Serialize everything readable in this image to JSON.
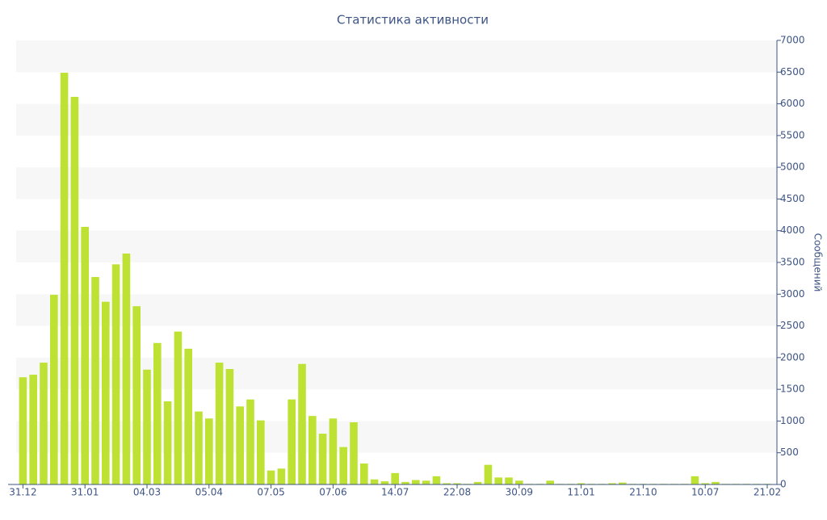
{
  "chart_data": {
    "type": "bar",
    "title": "Статистика активности",
    "y_label": "Сообщений",
    "categories": [
      "31.12",
      null,
      null,
      null,
      null,
      null,
      "31.01",
      null,
      null,
      null,
      null,
      null,
      "04.03",
      null,
      null,
      null,
      null,
      null,
      "05.04",
      null,
      null,
      null,
      null,
      null,
      "07.05",
      null,
      null,
      null,
      null,
      null,
      "07.06",
      null,
      null,
      null,
      null,
      null,
      "14.07",
      null,
      null,
      null,
      null,
      null,
      "22.08",
      null,
      null,
      null,
      null,
      null,
      "30.09",
      null,
      null,
      null,
      null,
      null,
      "11.01",
      null,
      null,
      null,
      null,
      null,
      "21.10",
      null,
      null,
      null,
      null,
      null,
      "10.07",
      null,
      null,
      null,
      null,
      null,
      "21.02"
    ],
    "values": [
      1690,
      1730,
      1920,
      2990,
      6490,
      6110,
      4060,
      3270,
      2880,
      3470,
      3640,
      2810,
      1810,
      2230,
      1310,
      2410,
      2140,
      1150,
      1040,
      1920,
      1820,
      1230,
      1340,
      1010,
      220,
      250,
      1340,
      1900,
      1080,
      800,
      1040,
      590,
      980,
      330,
      80,
      50,
      180,
      40,
      70,
      60,
      130,
      20,
      20,
      10,
      40,
      310,
      110,
      110,
      60,
      10,
      10,
      60,
      10,
      10,
      20,
      10,
      10,
      20,
      30,
      10,
      10,
      10,
      10,
      10,
      10,
      130,
      20,
      40,
      10,
      10,
      10,
      10,
      10
    ],
    "color": "#bde233",
    "ylim": [
      0,
      7000
    ],
    "yticks": [
      0,
      500,
      1000,
      1500,
      2000,
      2500,
      3000,
      3500,
      4000,
      4500,
      5000,
      5500,
      6000,
      6500,
      7000
    ],
    "grid": "bands",
    "y_axis_side": "right"
  }
}
